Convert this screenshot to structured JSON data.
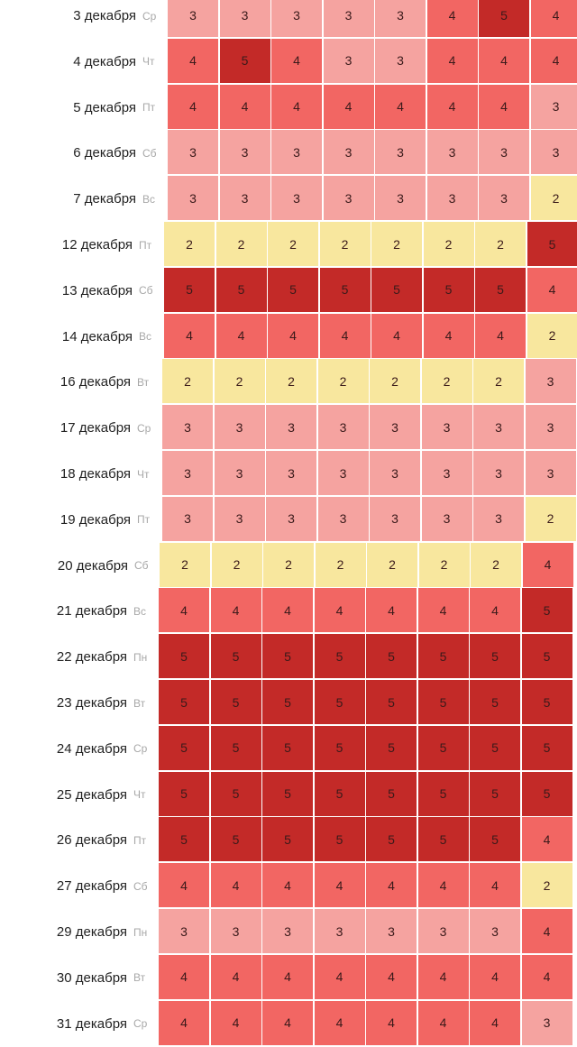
{
  "chart_data": {
    "type": "heatmap",
    "colors": {
      "2": "#f8e79e",
      "3": "#f5a3a0",
      "4": "#f26663",
      "5": "#c32a28"
    },
    "rows": [
      {
        "date": "3 декабря",
        "dow": "Ср",
        "values": [
          3,
          3,
          3,
          3,
          3,
          4,
          5,
          4
        ]
      },
      {
        "date": "4 декабря",
        "dow": "Чт",
        "values": [
          4,
          5,
          4,
          3,
          3,
          4,
          4,
          4
        ]
      },
      {
        "date": "5 декабря",
        "dow": "Пт",
        "values": [
          4,
          4,
          4,
          4,
          4,
          4,
          4,
          3
        ]
      },
      {
        "date": "6 декабря",
        "dow": "Сб",
        "values": [
          3,
          3,
          3,
          3,
          3,
          3,
          3,
          3
        ]
      },
      {
        "date": "7 декабря",
        "dow": "Вс",
        "values": [
          3,
          3,
          3,
          3,
          3,
          3,
          3,
          2
        ]
      },
      {
        "date": "12 декабря",
        "dow": "Пт",
        "values": [
          2,
          2,
          2,
          2,
          2,
          2,
          2,
          5
        ]
      },
      {
        "date": "13 декабря",
        "dow": "Сб",
        "values": [
          5,
          5,
          5,
          5,
          5,
          5,
          5,
          4
        ]
      },
      {
        "date": "14 декабря",
        "dow": "Вс",
        "values": [
          4,
          4,
          4,
          4,
          4,
          4,
          4,
          2
        ]
      },
      {
        "date": "16 декабря",
        "dow": "Вт",
        "values": [
          2,
          2,
          2,
          2,
          2,
          2,
          2,
          3
        ]
      },
      {
        "date": "17 декабря",
        "dow": "Ср",
        "values": [
          3,
          3,
          3,
          3,
          3,
          3,
          3,
          3
        ]
      },
      {
        "date": "18 декабря",
        "dow": "Чт",
        "values": [
          3,
          3,
          3,
          3,
          3,
          3,
          3,
          3
        ]
      },
      {
        "date": "19 декабря",
        "dow": "Пт",
        "values": [
          3,
          3,
          3,
          3,
          3,
          3,
          3,
          2
        ]
      },
      {
        "date": "20 декабря",
        "dow": "Сб",
        "values": [
          2,
          2,
          2,
          2,
          2,
          2,
          2,
          4
        ]
      },
      {
        "date": "21 декабря",
        "dow": "Вс",
        "values": [
          4,
          4,
          4,
          4,
          4,
          4,
          4,
          5
        ]
      },
      {
        "date": "22 декабря",
        "dow": "Пн",
        "values": [
          5,
          5,
          5,
          5,
          5,
          5,
          5,
          5
        ]
      },
      {
        "date": "23 декабря",
        "dow": "Вт",
        "values": [
          5,
          5,
          5,
          5,
          5,
          5,
          5,
          5
        ]
      },
      {
        "date": "24 декабря",
        "dow": "Ср",
        "values": [
          5,
          5,
          5,
          5,
          5,
          5,
          5,
          5
        ]
      },
      {
        "date": "25 декабря",
        "dow": "Чт",
        "values": [
          5,
          5,
          5,
          5,
          5,
          5,
          5,
          5
        ]
      },
      {
        "date": "26 декабря",
        "dow": "Пт",
        "values": [
          5,
          5,
          5,
          5,
          5,
          5,
          5,
          4
        ]
      },
      {
        "date": "27 декабря",
        "dow": "Сб",
        "values": [
          4,
          4,
          4,
          4,
          4,
          4,
          4,
          2
        ]
      },
      {
        "date": "29 декабря",
        "dow": "Пн",
        "values": [
          3,
          3,
          3,
          3,
          3,
          3,
          3,
          4
        ]
      },
      {
        "date": "30 декабря",
        "dow": "Вт",
        "values": [
          4,
          4,
          4,
          4,
          4,
          4,
          4,
          4
        ]
      },
      {
        "date": "31 декабря",
        "dow": "Ср",
        "values": [
          4,
          4,
          4,
          4,
          4,
          4,
          4,
          3
        ]
      }
    ]
  }
}
